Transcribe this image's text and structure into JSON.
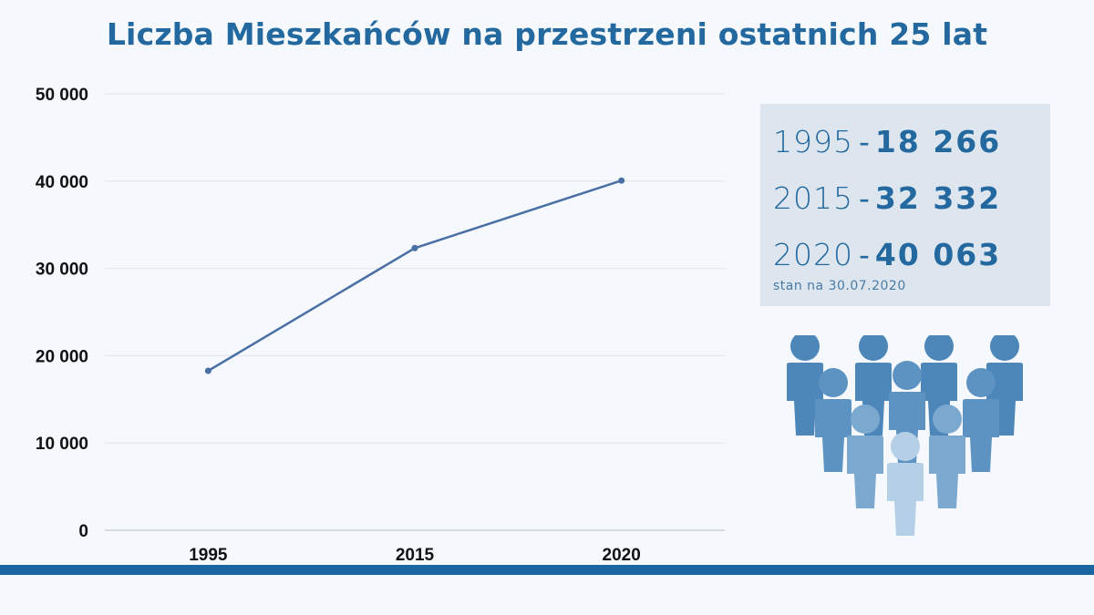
{
  "title": "Liczba Mieszkańców na przestrzeni ostatnich 25 lat",
  "chart_data": {
    "type": "line",
    "title": "Liczba Mieszkańców na przestrzeni ostatnich 25 lat",
    "categories": [
      "1995",
      "2015",
      "2020"
    ],
    "values": [
      18266,
      32332,
      40063
    ],
    "ylim": [
      0,
      50000
    ],
    "yticks": [
      0,
      10000,
      20000,
      30000,
      40000,
      50000
    ],
    "ytick_labels": [
      "0",
      "10 000",
      "20 000",
      "30 000",
      "40 000",
      "50 000"
    ],
    "xlabel": "",
    "ylabel": "",
    "grid": true,
    "line_color": "#4a6fa5"
  },
  "stats": [
    {
      "year": "1995",
      "value": "18 266"
    },
    {
      "year": "2015",
      "value": "32 332"
    },
    {
      "year": "2020",
      "value": "40 063"
    }
  ],
  "stats_note": "stan na 30.07.2020",
  "colors": {
    "accent": "#23689e",
    "bar": "#1b65a0",
    "panel": "#dde6ef"
  },
  "illustration": "people-group-icon"
}
